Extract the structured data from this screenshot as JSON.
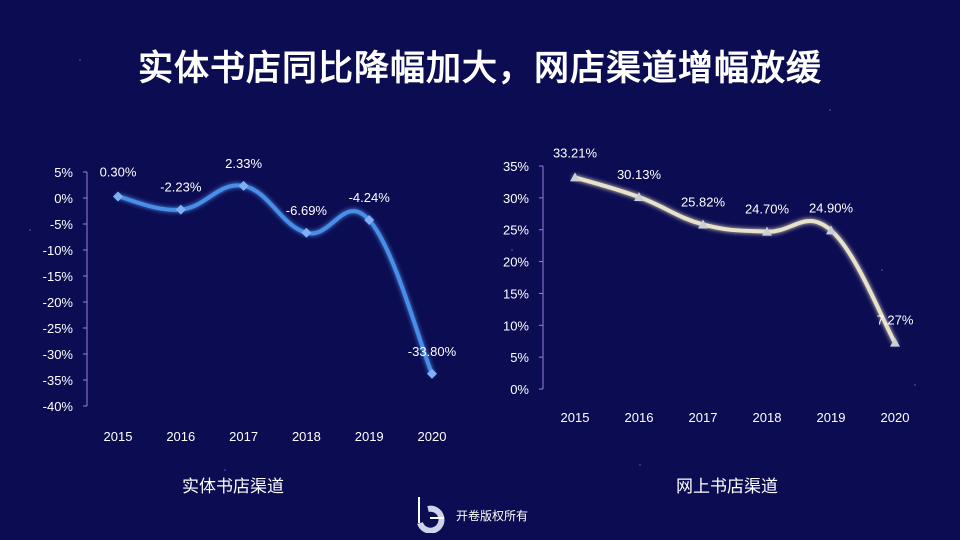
{
  "title": "实体书店同比降幅加大，网店渠道增幅放缓",
  "footer": {
    "text": "开卷版权所有",
    "logo_icon": "kaijuan-logo-icon"
  },
  "colors": {
    "background": "#0b0c52",
    "left_line": "#4a8fe8",
    "right_line": "#e8e2c8",
    "axis": "#9b7fe0"
  },
  "chart_data": [
    {
      "type": "line",
      "title": "实体书店渠道",
      "categories": [
        "2015",
        "2016",
        "2017",
        "2018",
        "2019",
        "2020"
      ],
      "values": [
        0.3,
        -2.23,
        2.33,
        -6.69,
        -4.24,
        -33.8
      ],
      "labels": [
        "0.30%",
        "-2.23%",
        "2.33%",
        "-6.69%",
        "-4.24%",
        "-33.80%"
      ],
      "yticks": [
        "5%",
        "0%",
        "-5%",
        "-10%",
        "-15%",
        "-20%",
        "-25%",
        "-30%",
        "-35%",
        "-40%"
      ],
      "ylim": [
        -40,
        5
      ],
      "marker": "diamond"
    },
    {
      "type": "line",
      "title": "网上书店渠道",
      "categories": [
        "2015",
        "2016",
        "2017",
        "2018",
        "2019",
        "2020"
      ],
      "values": [
        33.21,
        30.13,
        25.82,
        24.7,
        24.9,
        7.27
      ],
      "labels": [
        "33.21%",
        "30.13%",
        "25.82%",
        "24.70%",
        "24.90%",
        "7.27%"
      ],
      "yticks": [
        "35%",
        "30%",
        "25%",
        "20%",
        "15%",
        "10%",
        "5%",
        "0%"
      ],
      "ylim": [
        0,
        35
      ],
      "marker": "triangle"
    }
  ]
}
